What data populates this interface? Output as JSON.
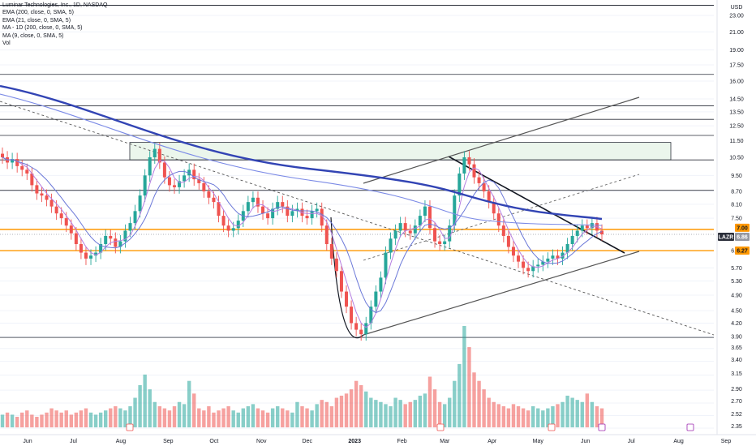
{
  "chart_data": {
    "type": "candlestick",
    "title": "Luminar Technologies, Inc., 1D, NASDAQ",
    "indicators": [
      "EMA (200, close, 0, SMA, 5)",
      "EMA (21, close, 0, SMA, 5)",
      "MA - 1D (200, close, 0, SMA, 5)",
      "MA (9, close, 0, SMA, 5)",
      "Vol"
    ],
    "currency": "USD",
    "price_axis_labels": [
      "23.00",
      "21.00",
      "19.00",
      "17.50",
      "16.00",
      "14.50",
      "13.50",
      "12.50",
      "11.50",
      "10.50",
      "9.50",
      "8.70",
      "8.10",
      "7.50",
      "6.27",
      "5.70",
      "5.30",
      "4.90",
      "4.50",
      "4.20",
      "3.90",
      "3.65",
      "3.40",
      "3.15",
      "2.90",
      "2.70",
      "2.52",
      "2.35"
    ],
    "price_badges": [
      {
        "label": "7.00",
        "color": "#ff9800"
      },
      {
        "label": "LAZR",
        "color": "#2a2e39"
      },
      {
        "label": "6.86",
        "color": "#9598a1"
      },
      {
        "label": "6.27",
        "color": "#ff9800"
      }
    ],
    "time_axis_labels": [
      "Jun",
      "Jul",
      "Aug",
      "Sep",
      "Oct",
      "Nov",
      "Dec",
      "2023",
      "Feb",
      "Mar",
      "Apr",
      "May",
      "Jun",
      "Jul",
      "Aug",
      "Sep"
    ],
    "horizontal_levels": [
      25.5,
      16.6,
      13.95,
      12.95,
      11.85,
      10.35,
      8.75,
      7.05,
      6.86,
      6.27,
      3.88
    ],
    "highlight_zone": {
      "from": 10.35,
      "to": 11.4
    },
    "colors": {
      "up": "#26a69a",
      "down": "#ef5350",
      "ema200": "#3244b4",
      "ma200": "#7b8ae6",
      "ema21": "#6b78d8",
      "ma9": "#b57ee0",
      "level": "#2a2e39",
      "key_level": "#ff9800",
      "zone_fill": "#e8f5e9",
      "zone_border": "#2a2e39"
    },
    "closes": [
      10.5,
      10.2,
      10.4,
      10.0,
      9.8,
      9.6,
      9.0,
      8.6,
      8.5,
      8.3,
      8.0,
      7.7,
      7.5,
      7.2,
      6.9,
      6.5,
      6.2,
      6.0,
      6.1,
      6.2,
      6.5,
      6.8,
      6.7,
      6.4,
      6.6,
      7.0,
      7.3,
      7.8,
      8.5,
      9.5,
      10.5,
      11.0,
      10.2,
      9.4,
      9.0,
      8.9,
      9.2,
      9.5,
      9.8,
      9.3,
      9.1,
      8.7,
      8.4,
      8.2,
      7.6,
      7.2,
      7.0,
      7.1,
      7.4,
      7.8,
      8.2,
      8.4,
      8.0,
      7.7,
      7.5,
      7.9,
      8.2,
      8.0,
      7.6,
      7.8,
      7.9,
      7.6,
      7.5,
      7.8,
      7.9,
      7.2,
      6.5,
      6.0,
      5.6,
      5.0,
      4.6,
      4.2,
      4.05,
      3.95,
      4.2,
      4.6,
      5.0,
      5.4,
      6.2,
      6.7,
      7.0,
      7.3,
      7.0,
      6.9,
      7.2,
      7.6,
      8.0,
      7.1,
      6.6,
      6.5,
      6.6,
      7.2,
      8.5,
      9.6,
      10.5,
      10.1,
      9.4,
      9.1,
      8.7,
      8.2,
      7.7,
      7.2,
      6.8,
      6.4,
      6.1,
      5.9,
      5.7,
      5.6,
      5.75,
      5.8,
      5.9,
      6.0,
      6.1,
      6.0,
      6.2,
      6.5,
      6.8,
      7.0,
      7.2,
      7.1,
      7.3,
      7.0,
      6.86
    ],
    "volume": [
      6,
      7,
      6,
      5,
      7,
      8,
      6,
      5,
      6,
      7,
      9,
      8,
      7,
      8,
      6,
      7,
      8,
      9,
      7,
      6,
      7,
      8,
      9,
      10,
      9,
      8,
      10,
      14,
      20,
      25,
      18,
      12,
      10,
      9,
      8,
      10,
      12,
      11,
      22,
      16,
      9,
      8,
      10,
      7,
      8,
      9,
      10,
      8,
      7,
      9,
      10,
      11,
      9,
      8,
      7,
      9,
      10,
      9,
      8,
      7,
      12,
      10,
      9,
      8,
      11,
      13,
      12,
      10,
      14,
      15,
      16,
      18,
      22,
      20,
      17,
      14,
      13,
      12,
      11,
      10,
      14,
      13,
      11,
      12,
      13,
      15,
      16,
      24,
      18,
      12,
      11,
      14,
      22,
      30,
      48,
      38,
      26,
      22,
      18,
      14,
      12,
      11,
      10,
      9,
      11,
      10,
      9,
      8,
      10,
      9,
      8,
      9,
      10,
      11,
      12,
      15,
      14,
      13,
      12,
      16,
      12,
      10,
      9
    ]
  }
}
